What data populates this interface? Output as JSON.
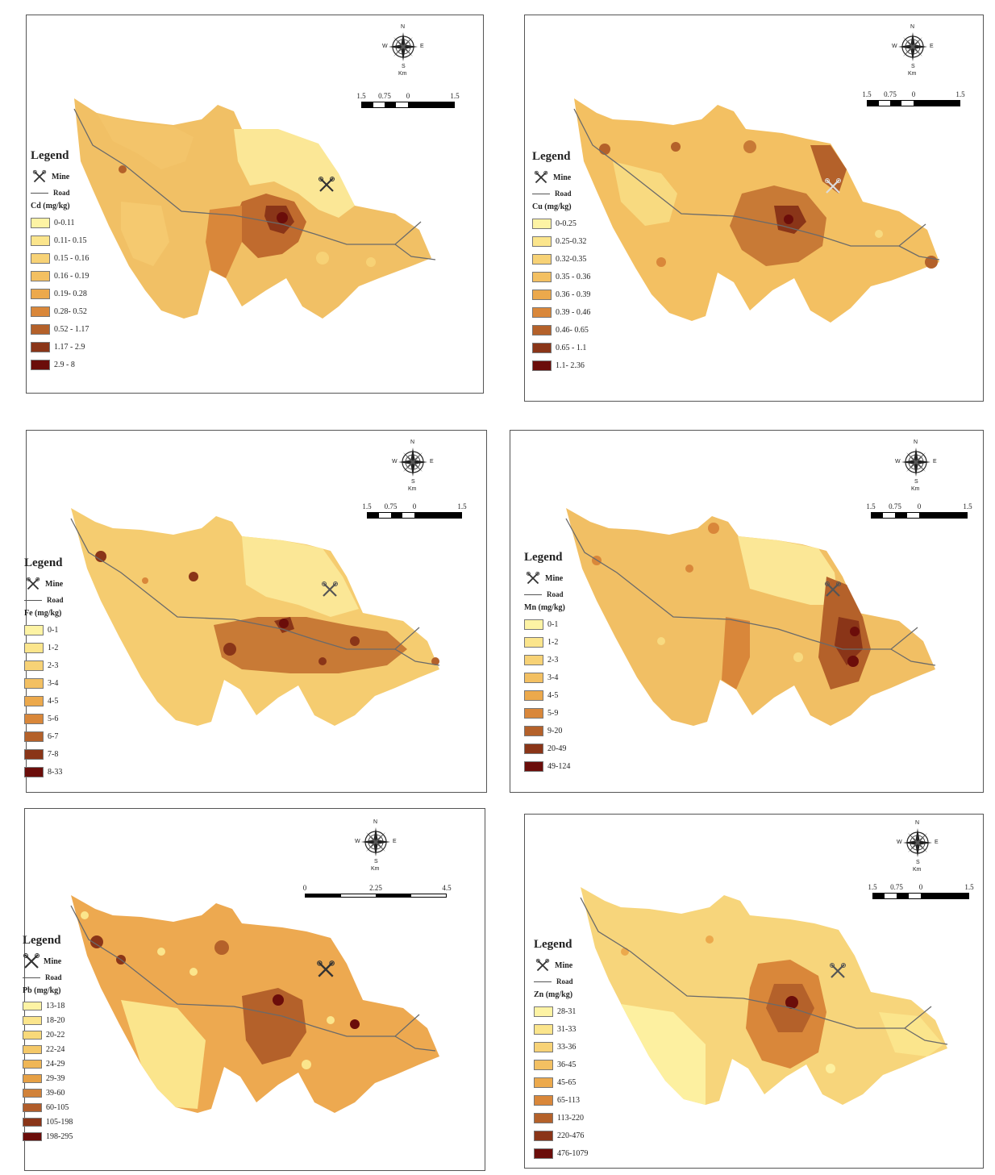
{
  "legend_common": {
    "title": "Legend",
    "road_label": "Road"
  },
  "compass": {
    "n": "N",
    "s": "S",
    "e": "E",
    "w": "W",
    "unit": "Km"
  },
  "maps": [
    {
      "id": "cd",
      "mine_label": "Mine",
      "variable": "Cd (mg/kg)",
      "classes": [
        "0-0.11",
        "0.11- 0.15",
        "0.15 - 0.16",
        "0.16 - 0.19",
        "0.19- 0.28",
        "0.28- 0.52",
        "0.52 - 1.17",
        "1.17 - 2.9",
        "2.9 - 8"
      ],
      "scale_labels": [
        "1.5",
        "0.75",
        "0",
        "1.5"
      ]
    },
    {
      "id": "cu",
      "mine_label": "Mine",
      "variable": "Cu (mg/kg)",
      "classes": [
        "0-0.25",
        "0.25-0.32",
        "0.32-0.35",
        "0.35 - 0.36",
        "0.36 - 0.39",
        "0.39 - 0.46",
        "0.46- 0.65",
        "0.65 - 1.1",
        "1.1- 2.36"
      ],
      "scale_labels": [
        "1.5",
        "0.75",
        "0",
        "1.5"
      ]
    },
    {
      "id": "fe",
      "mine_label": "Mine",
      "variable": "Fe (mg/kg)",
      "classes": [
        "0-1",
        "1-2",
        "2-3",
        "3-4",
        "4-5",
        "5-6",
        "6-7",
        "7-8",
        "8-33"
      ],
      "scale_labels": [
        "1.5",
        "0.75",
        "0",
        "1.5"
      ]
    },
    {
      "id": "mn",
      "mine_label": "Mine",
      "variable": "Mn (mg/kg)",
      "classes": [
        "0-1",
        "1-2",
        "2-3",
        "3-4",
        "4-5",
        "5-9",
        "9-20",
        "20-49",
        "49-124"
      ],
      "scale_labels": [
        "1.5",
        "0.75",
        "0",
        "1.5"
      ]
    },
    {
      "id": "pb",
      "mine_label": "Mine",
      "variable": "Pb (mg/kg)",
      "classes": [
        "13-18",
        "18-20",
        "20-22",
        "22-24",
        "24-29",
        "29-39",
        "39-60",
        "60-105",
        "105-198",
        "198-295"
      ],
      "scale_labels": [
        "0",
        "2.25",
        "4.5"
      ]
    },
    {
      "id": "zn",
      "mine_label": "Mine",
      "variable": "Zn (mg/kg)",
      "classes": [
        "28-31",
        "31-33",
        "33-36",
        "36-45",
        "45-65",
        "65-113",
        "113-220",
        "220-476",
        "476-1079"
      ],
      "scale_labels": [
        "1.5",
        "0.75",
        "0",
        "1.5"
      ]
    }
  ],
  "colors": {
    "ramp": [
      "#fdf3a4",
      "#fbe58c",
      "#f7d276",
      "#f3c062",
      "#eca94c",
      "#d9873a",
      "#b4612a",
      "#8a3518",
      "#6b0d0a"
    ],
    "ramp10": [
      "#fdf3a4",
      "#fbe58c",
      "#f8d97a",
      "#f4c868",
      "#efb656",
      "#e6a045",
      "#d1823a",
      "#b05c2a",
      "#8a3518",
      "#6b0d0a"
    ]
  }
}
